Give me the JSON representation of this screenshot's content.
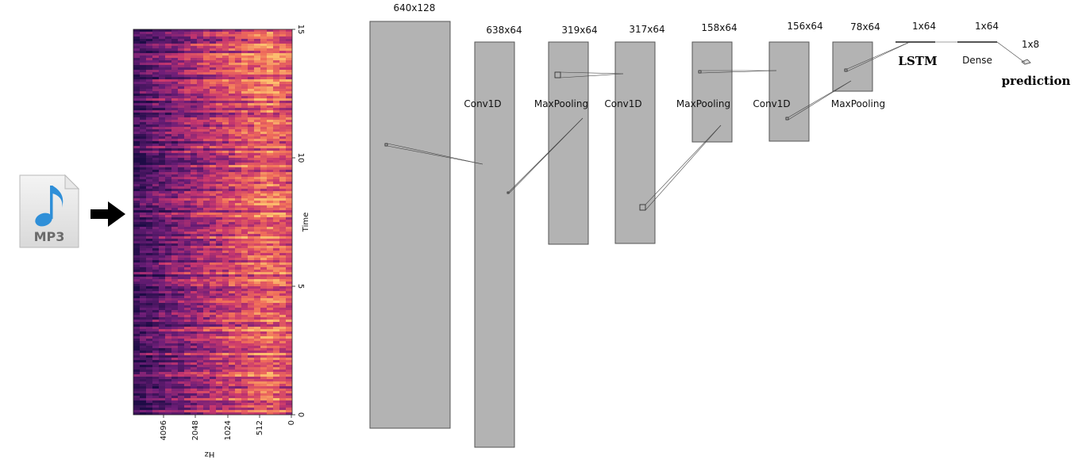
{
  "colors": {
    "block_fill": "#b3b3b3",
    "block_stroke": "#555555",
    "arrow": "#000000",
    "note_blue": "#2f8fd8",
    "spectrogram_dark": "#2a1458",
    "spectrogram_mid": "#c0387a",
    "spectrogram_bright": "#f7a65a"
  },
  "input_file": {
    "icon": "music-note-icon",
    "label": "MP3"
  },
  "arrow_icon": "right-arrow-icon",
  "spectrogram": {
    "x_axis": {
      "label": "Hz",
      "ticks": [
        "4096",
        "2048",
        "1024",
        "512",
        "0"
      ]
    },
    "y_axis": {
      "label": "Time",
      "ticks": [
        "15",
        "10",
        "5",
        "0"
      ]
    }
  },
  "layers": [
    {
      "id": "input",
      "dims": "640x128",
      "name": ""
    },
    {
      "id": "conv1",
      "dims": "638x64",
      "name": "Conv1D"
    },
    {
      "id": "pool1",
      "dims": "319x64",
      "name": "MaxPooling"
    },
    {
      "id": "conv2",
      "dims": "317x64",
      "name": "Conv1D"
    },
    {
      "id": "pool2",
      "dims": "158x64",
      "name": "MaxPooling"
    },
    {
      "id": "conv3",
      "dims": "156x64",
      "name": "Conv1D"
    },
    {
      "id": "pool3",
      "dims": "78x64",
      "name": "MaxPooling"
    },
    {
      "id": "lstm",
      "dims": "1x64",
      "name": "LSTM"
    },
    {
      "id": "dense",
      "dims": "1x64",
      "name": "Dense"
    },
    {
      "id": "output",
      "dims": "1x8",
      "name": "prediction"
    }
  ]
}
